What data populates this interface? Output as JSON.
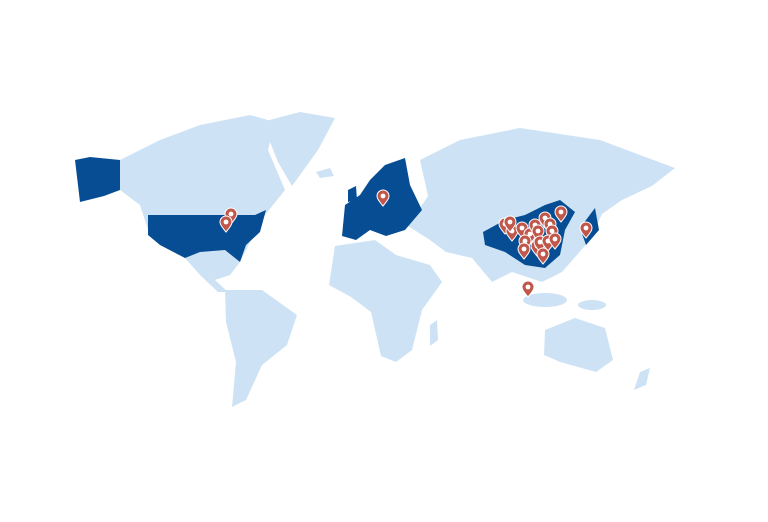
{
  "map": {
    "land_color": "#cde3f5",
    "highlight_color": "#064d94",
    "pin_color": "#c0574a"
  }
}
